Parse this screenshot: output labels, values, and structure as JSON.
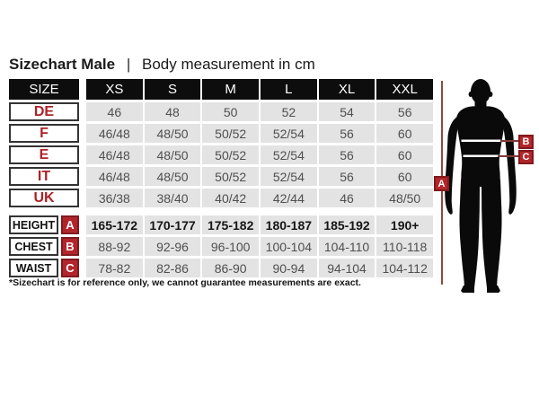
{
  "title": {
    "bold": "Sizechart Male",
    "separator": "|",
    "rest": "Body measurement in cm"
  },
  "table": {
    "header": [
      "SIZE",
      "XS",
      "S",
      "M",
      "L",
      "XL",
      "XXL"
    ],
    "size_rows": [
      {
        "label": "DE",
        "values": [
          "46",
          "48",
          "50",
          "52",
          "54",
          "56"
        ]
      },
      {
        "label": "F",
        "values": [
          "46/48",
          "48/50",
          "50/52",
          "52/54",
          "56",
          "60"
        ]
      },
      {
        "label": "E",
        "values": [
          "46/48",
          "48/50",
          "50/52",
          "52/54",
          "56",
          "60"
        ]
      },
      {
        "label": "IT",
        "values": [
          "46/48",
          "48/50",
          "50/52",
          "52/54",
          "56",
          "60"
        ]
      },
      {
        "label": "UK",
        "values": [
          "36/38",
          "38/40",
          "40/42",
          "42/44",
          "46",
          "48/50"
        ]
      }
    ],
    "measure_rows": [
      {
        "label": "HEIGHT",
        "marker": "A",
        "bold": true,
        "values": [
          "165-172",
          "170-177",
          "175-182",
          "180-187",
          "185-192",
          "190+"
        ]
      },
      {
        "label": "CHEST",
        "marker": "B",
        "bold": false,
        "values": [
          "88-92",
          "92-96",
          "96-100",
          "100-104",
          "104-110",
          "110-118"
        ]
      },
      {
        "label": "WAIST",
        "marker": "C",
        "bold": false,
        "values": [
          "78-82",
          "82-86",
          "86-90",
          "90-94",
          "94-104",
          "104-112"
        ]
      }
    ]
  },
  "figure": {
    "markers": [
      "A",
      "B",
      "C"
    ]
  },
  "footnote": "*Sizechart is for reference only, we cannot guarantee measurements are exact.",
  "colors": {
    "accent_red": "#b2262b",
    "accent_red_border": "#82191d",
    "label_red": "#ae2227",
    "line_red": "#8d4a43",
    "header_bg": "#0d0d0d",
    "cell_bg": "#e3e3e3",
    "cell_text": "#4f4f4f",
    "silhouette": "#0a0a0a"
  },
  "chart_data": {
    "type": "table",
    "title": "Sizechart Male | Body measurement in cm",
    "columns": [
      "SIZE",
      "XS",
      "S",
      "M",
      "L",
      "XL",
      "XXL"
    ],
    "rows": [
      [
        "DE",
        "46",
        "48",
        "50",
        "52",
        "54",
        "56"
      ],
      [
        "F",
        "46/48",
        "48/50",
        "50/52",
        "52/54",
        "56",
        "60"
      ],
      [
        "E",
        "46/48",
        "48/50",
        "50/52",
        "52/54",
        "56",
        "60"
      ],
      [
        "IT",
        "46/48",
        "48/50",
        "50/52",
        "52/54",
        "56",
        "60"
      ],
      [
        "UK",
        "36/38",
        "38/40",
        "40/42",
        "42/44",
        "46",
        "48/50"
      ],
      [
        "HEIGHT (A)",
        "165-172",
        "170-177",
        "175-182",
        "180-187",
        "185-192",
        "190+"
      ],
      [
        "CHEST (B)",
        "88-92",
        "92-96",
        "96-100",
        "100-104",
        "104-110",
        "110-118"
      ],
      [
        "WAIST (C)",
        "78-82",
        "82-86",
        "86-90",
        "90-94",
        "94-104",
        "104-112"
      ]
    ],
    "footnote": "*Sizechart is for reference only, we cannot guarantee measurements are exact."
  }
}
